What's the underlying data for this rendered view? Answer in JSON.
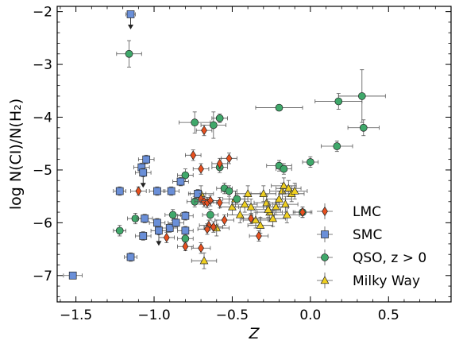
{
  "chart_data": {
    "type": "scatter",
    "xlabel": "Z",
    "ylabel": "log N(CI)/N(H₂)",
    "xlim": [
      -1.62,
      0.9
    ],
    "ylim": [
      -7.5,
      -1.9
    ],
    "x_ticks": [
      -1.5,
      -1.0,
      -0.5,
      0.0,
      0.5
    ],
    "x_tick_labels": [
      "−1.5",
      "−1.0",
      "−0.5",
      "0.0",
      "0.5"
    ],
    "y_ticks": [
      -2,
      -3,
      -4,
      -5,
      -6,
      -7
    ],
    "y_tick_labels": [
      "−2",
      "−3",
      "−4",
      "−5",
      "−6",
      "−7"
    ],
    "legend_position": "lower-right",
    "series": [
      {
        "name": "LMC",
        "marker": "diamond",
        "color": "#e8501e",
        "points": [
          {
            "x": -1.1,
            "y": -5.4,
            "xerr": 0.05,
            "yerr": 0.08
          },
          {
            "x": -0.92,
            "y": -6.28,
            "xerr": 0.05,
            "yerr": 0.1
          },
          {
            "x": -0.8,
            "y": -6.45,
            "xerr": 0.05,
            "yerr": 0.08
          },
          {
            "x": -0.75,
            "y": -4.72,
            "xerr": 0.05,
            "yerr": 0.1
          },
          {
            "x": -0.7,
            "y": -4.98,
            "xerr": 0.05,
            "yerr": 0.1
          },
          {
            "x": -0.68,
            "y": -4.25,
            "xerr": 0.05,
            "yerr": 0.1
          },
          {
            "x": -0.7,
            "y": -5.55,
            "xerr": 0.06,
            "yerr": 0.1
          },
          {
            "x": -0.68,
            "y": -5.6,
            "xerr": 0.06,
            "yerr": 0.1
          },
          {
            "x": -0.66,
            "y": -5.62,
            "xerr": 0.06,
            "yerr": 0.1
          },
          {
            "x": -0.64,
            "y": -5.58,
            "xerr": 0.06,
            "yerr": 0.1
          },
          {
            "x": -0.65,
            "y": -6.05,
            "xerr": 0.06,
            "yerr": 0.1
          },
          {
            "x": -0.66,
            "y": -6.12,
            "xerr": 0.06,
            "yerr": 0.1
          },
          {
            "x": -0.62,
            "y": -6.08,
            "xerr": 0.06,
            "yerr": 0.1
          },
          {
            "x": -0.7,
            "y": -6.48,
            "xerr": 0.06,
            "yerr": 0.1
          },
          {
            "x": -0.58,
            "y": -5.62,
            "xerr": 0.06,
            "yerr": 0.1
          },
          {
            "x": -0.55,
            "y": -5.95,
            "xerr": 0.06,
            "yerr": 0.1
          },
          {
            "x": -0.58,
            "y": -4.88,
            "xerr": 0.05,
            "yerr": 0.1
          },
          {
            "x": -0.52,
            "y": -4.78,
            "xerr": 0.05,
            "yerr": 0.1
          },
          {
            "x": -0.38,
            "y": -5.92,
            "xerr": 0.06,
            "yerr": 0.1
          },
          {
            "x": -0.33,
            "y": -6.25,
            "xerr": 0.06,
            "yerr": 0.1
          },
          {
            "x": -0.05,
            "y": -5.8,
            "xerr": 0.06,
            "yerr": 0.1
          }
        ]
      },
      {
        "name": "SMC",
        "marker": "square",
        "color": "#6a8fd8",
        "points": [
          {
            "x": -1.15,
            "y": -2.05,
            "xerr": 0.03,
            "upper_limit": true
          },
          {
            "x": -1.05,
            "y": -4.8,
            "xerr": 0.05,
            "yerr": 0.08
          },
          {
            "x": -1.08,
            "y": -4.95,
            "xerr": 0.05,
            "yerr": 0.08
          },
          {
            "x": -1.07,
            "y": -5.05,
            "xerr": 0.05,
            "yerr": 0.08,
            "upper_limit": true
          },
          {
            "x": -1.22,
            "y": -5.4,
            "xerr": 0.04,
            "yerr": 0.08
          },
          {
            "x": -0.98,
            "y": -5.4,
            "xerr": 0.05,
            "yerr": 0.08
          },
          {
            "x": -0.89,
            "y": -5.4,
            "xerr": 0.05,
            "yerr": 0.08
          },
          {
            "x": -0.83,
            "y": -5.22,
            "xerr": 0.05,
            "yerr": 0.08
          },
          {
            "x": -1.06,
            "y": -5.92,
            "xerr": 0.05,
            "yerr": 0.08
          },
          {
            "x": -0.98,
            "y": -6.0,
            "xerr": 0.05,
            "yerr": 0.08
          },
          {
            "x": -0.9,
            "y": -6.1,
            "xerr": 0.05,
            "yerr": 0.08
          },
          {
            "x": -0.86,
            "y": -6.0,
            "xerr": 0.05,
            "yerr": 0.08
          },
          {
            "x": -0.8,
            "y": -5.87,
            "xerr": 0.05,
            "yerr": 0.08
          },
          {
            "x": -0.8,
            "y": -6.15,
            "xerr": 0.05,
            "yerr": 0.08
          },
          {
            "x": -0.72,
            "y": -5.45,
            "xerr": 0.05,
            "yerr": 0.08
          },
          {
            "x": -0.97,
            "y": -6.15,
            "xerr": 0.05,
            "yerr": 0.08,
            "upper_limit": true
          },
          {
            "x": -1.07,
            "y": -6.25,
            "xerr": 0.05,
            "yerr": 0.08
          },
          {
            "x": -1.15,
            "y": -6.65,
            "xerr": 0.04,
            "yerr": 0.08
          },
          {
            "x": -1.52,
            "y": -7.0,
            "xerr": 0.06,
            "yerr": 0.06
          }
        ]
      },
      {
        "name": "QSO, z > 0",
        "marker": "circle",
        "color": "#3fa86a",
        "points": [
          {
            "x": -1.16,
            "y": -2.8,
            "xerr": 0.08,
            "yerr": 0.25
          },
          {
            "x": -1.22,
            "y": -6.15,
            "xerr": 0.04,
            "yerr": 0.1
          },
          {
            "x": -1.12,
            "y": -5.92,
            "xerr": 0.05,
            "yerr": 0.1
          },
          {
            "x": -0.88,
            "y": -5.85,
            "xerr": 0.05,
            "yerr": 0.1
          },
          {
            "x": -0.8,
            "y": -5.1,
            "xerr": 0.05,
            "yerr": 0.12
          },
          {
            "x": -0.8,
            "y": -6.3,
            "xerr": 0.05,
            "yerr": 0.1
          },
          {
            "x": -0.74,
            "y": -4.1,
            "xerr": 0.1,
            "yerr": 0.2
          },
          {
            "x": -0.62,
            "y": -4.15,
            "xerr": 0.08,
            "yerr": 0.25
          },
          {
            "x": -0.58,
            "y": -4.02,
            "xerr": 0.05,
            "yerr": 0.08
          },
          {
            "x": -0.74,
            "y": -5.6,
            "xerr": 0.05,
            "yerr": 0.1
          },
          {
            "x": -0.64,
            "y": -5.85,
            "xerr": 0.05,
            "yerr": 0.1
          },
          {
            "x": -0.58,
            "y": -4.95,
            "xerr": 0.05,
            "yerr": 0.1
          },
          {
            "x": -0.55,
            "y": -5.35,
            "xerr": 0.05,
            "yerr": 0.1
          },
          {
            "x": -0.52,
            "y": -5.4,
            "xerr": 0.05,
            "yerr": 0.1
          },
          {
            "x": -0.47,
            "y": -5.55,
            "xerr": 0.05,
            "yerr": 0.1
          },
          {
            "x": -0.2,
            "y": -3.82,
            "xerr": 0.15,
            "yerr": 0.05
          },
          {
            "x": -0.2,
            "y": -4.92,
            "xerr": 0.08,
            "yerr": 0.1
          },
          {
            "x": -0.17,
            "y": -4.98,
            "xerr": 0.05,
            "yerr": 0.1
          },
          {
            "x": 0.0,
            "y": -4.85,
            "xerr": 0.05,
            "yerr": 0.1
          },
          {
            "x": -0.05,
            "y": -5.8,
            "xerr": 0.05,
            "yerr": 0.1
          },
          {
            "x": 0.18,
            "y": -3.7,
            "xerr": 0.15,
            "yerr": 0.15
          },
          {
            "x": 0.17,
            "y": -4.55,
            "xerr": 0.1,
            "yerr": 0.1
          },
          {
            "x": 0.33,
            "y": -3.6,
            "xerr": 0.15,
            "yerr": 0.5
          },
          {
            "x": 0.34,
            "y": -4.2,
            "xerr": 0.1,
            "yerr": 0.15
          }
        ]
      },
      {
        "name": "Milky Way",
        "marker": "triangle",
        "color": "#f0d020",
        "points": [
          {
            "x": -0.7,
            "y": -5.45,
            "xerr": 0.08,
            "yerr": 0.15
          },
          {
            "x": -0.68,
            "y": -6.72,
            "xerr": 0.08,
            "yerr": 0.15
          },
          {
            "x": -0.6,
            "y": -6.1,
            "xerr": 0.08,
            "yerr": 0.15
          },
          {
            "x": -0.5,
            "y": -5.7,
            "xerr": 0.08,
            "yerr": 0.15
          },
          {
            "x": -0.48,
            "y": -5.55,
            "xerr": 0.08,
            "yerr": 0.15
          },
          {
            "x": -0.45,
            "y": -5.85,
            "xerr": 0.08,
            "yerr": 0.15
          },
          {
            "x": -0.4,
            "y": -5.45,
            "xerr": 0.08,
            "yerr": 0.15
          },
          {
            "x": -0.38,
            "y": -5.7,
            "xerr": 0.08,
            "yerr": 0.15
          },
          {
            "x": -0.35,
            "y": -5.95,
            "xerr": 0.08,
            "yerr": 0.15
          },
          {
            "x": -0.32,
            "y": -6.05,
            "xerr": 0.08,
            "yerr": 0.15
          },
          {
            "x": -0.3,
            "y": -5.45,
            "xerr": 0.08,
            "yerr": 0.15
          },
          {
            "x": -0.28,
            "y": -5.62,
            "xerr": 0.08,
            "yerr": 0.15
          },
          {
            "x": -0.26,
            "y": -5.8,
            "xerr": 0.08,
            "yerr": 0.15
          },
          {
            "x": -0.24,
            "y": -5.92,
            "xerr": 0.08,
            "yerr": 0.15
          },
          {
            "x": -0.22,
            "y": -5.7,
            "xerr": 0.08,
            "yerr": 0.15
          },
          {
            "x": -0.2,
            "y": -5.55,
            "xerr": 0.08,
            "yerr": 0.15
          },
          {
            "x": -0.18,
            "y": -5.4,
            "xerr": 0.08,
            "yerr": 0.15
          },
          {
            "x": -0.17,
            "y": -5.3,
            "xerr": 0.08,
            "yerr": 0.15
          },
          {
            "x": -0.16,
            "y": -5.65,
            "xerr": 0.08,
            "yerr": 0.15
          },
          {
            "x": -0.15,
            "y": -5.85,
            "xerr": 0.08,
            "yerr": 0.15
          },
          {
            "x": -0.14,
            "y": -5.35,
            "xerr": 0.08,
            "yerr": 0.15
          },
          {
            "x": -0.12,
            "y": -5.45,
            "xerr": 0.08,
            "yerr": 0.15
          },
          {
            "x": -0.1,
            "y": -5.4,
            "xerr": 0.08,
            "yerr": 0.15
          },
          {
            "x": -0.27,
            "y": -5.75,
            "xerr": 0.08,
            "yerr": 0.15
          },
          {
            "x": -0.42,
            "y": -5.65,
            "xerr": 0.08,
            "yerr": 0.15
          }
        ]
      }
    ]
  }
}
